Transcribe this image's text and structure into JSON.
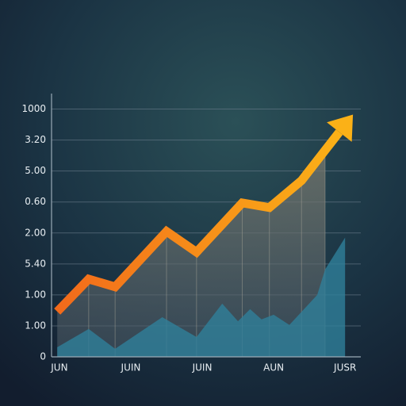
{
  "chart_data": {
    "type": "line",
    "xlim": [
      -0.11,
      4.22
    ],
    "xticks": [
      {
        "value": 0,
        "label": "JUN"
      },
      {
        "value": 1,
        "label": "JUIN"
      },
      {
        "value": 2,
        "label": "JUIN"
      },
      {
        "value": 3,
        "label": "AUN"
      },
      {
        "value": 4,
        "label": "JUSR"
      }
    ],
    "ylim": [
      0,
      8.5
    ],
    "yticks": [
      {
        "value": 0,
        "label": "0"
      },
      {
        "value": 1,
        "label": "1.00"
      },
      {
        "value": 2,
        "label": "1.00"
      },
      {
        "value": 3,
        "label": "5.40"
      },
      {
        "value": 4,
        "label": "2.00"
      },
      {
        "value": 5,
        "label": "0.60"
      },
      {
        "value": 6,
        "label": "5.00"
      },
      {
        "value": 7,
        "label": "3.20"
      },
      {
        "value": 8,
        "label": "1000"
      }
    ],
    "grid": true,
    "series": [
      {
        "color": "#f7901e",
        "x": [
          -0.03,
          0.41,
          0.78,
          1.5,
          1.92,
          2.56,
          2.94,
          3.39,
          3.72,
          4.11
        ],
        "values": [
          1.46,
          2.51,
          2.26,
          4.05,
          3.38,
          4.97,
          4.82,
          5.69,
          6.67,
          7.82
        ]
      },
      {
        "color": "#2f7f9a",
        "x": [
          -0.03,
          0.41,
          0.78,
          1.44,
          1.92,
          2.28,
          2.5,
          2.67,
          2.83,
          3.0,
          3.22,
          3.61,
          3.72,
          4.0
        ],
        "values": [
          0.31,
          0.9,
          0.26,
          1.28,
          0.64,
          1.72,
          1.15,
          1.54,
          1.21,
          1.36,
          1.03,
          2.0,
          2.82,
          3.85
        ]
      }
    ]
  }
}
